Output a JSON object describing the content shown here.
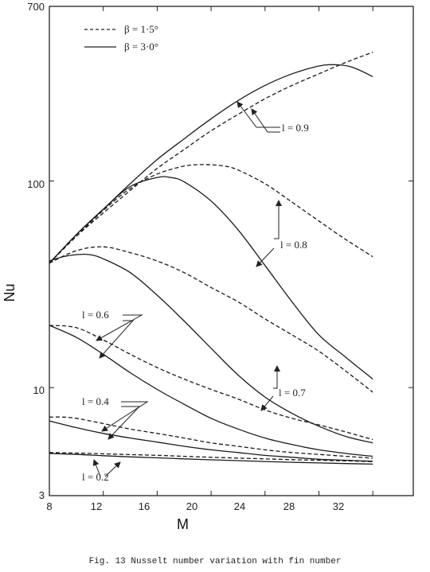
{
  "caption": "Fig. 13   Nusselt number variation with fin number",
  "chart_data": {
    "type": "line",
    "title": "",
    "xlabel": "M",
    "ylabel": "Nu",
    "xlim": [
      8,
      35
    ],
    "ylim": [
      3,
      700
    ],
    "yscale": "log",
    "xticks": [
      8,
      12,
      16,
      20,
      24,
      28,
      32
    ],
    "ytick_labels": [
      "3",
      "10",
      "100",
      "700"
    ],
    "grid": false,
    "legend": {
      "position": "top-left",
      "entries": [
        {
          "label": "β = 1·5°",
          "style": "dashed"
        },
        {
          "label": "β = 3·0°",
          "style": "solid"
        }
      ]
    },
    "series": [
      {
        "group": "l = 0.9",
        "style": "dashed",
        "x": [
          8,
          10,
          12,
          14,
          16,
          18,
          20,
          22,
          24,
          26,
          28,
          30,
          32
        ],
        "y": [
          40,
          54,
          70,
          90,
          115,
          142,
          175,
          210,
          250,
          290,
          330,
          375,
          420
        ]
      },
      {
        "group": "l = 0.9",
        "style": "solid",
        "x": [
          8,
          10,
          12,
          14,
          16,
          18,
          20,
          22,
          24,
          26,
          28,
          29.3,
          30.5,
          32
        ],
        "y": [
          40,
          55,
          73,
          97,
          127,
          160,
          200,
          245,
          290,
          330,
          360,
          365,
          355,
          320
        ]
      },
      {
        "group": "l = 0.8",
        "style": "dashed",
        "x": [
          8,
          10,
          12,
          14,
          16,
          18,
          19.5,
          21,
          22,
          24,
          26,
          28,
          30,
          32
        ],
        "y": [
          40,
          54,
          72,
          92,
          108,
          118,
          120,
          118,
          113,
          97,
          79,
          64,
          52,
          43
        ]
      },
      {
        "group": "l = 0.8",
        "style": "solid",
        "x": [
          8,
          10,
          12,
          14,
          16,
          17,
          18,
          20,
          22,
          24,
          26,
          28,
          30,
          32
        ],
        "y": [
          40,
          55,
          73,
          94,
          104,
          104,
          99,
          80,
          58,
          39,
          26,
          18,
          14,
          11
        ]
      },
      {
        "group": "l = 0.7",
        "style": "dashed",
        "x": [
          8,
          10,
          12,
          14,
          16,
          18,
          20,
          22,
          24,
          26,
          28,
          30,
          32
        ],
        "y": [
          40,
          46,
          48,
          45,
          41,
          36,
          30.5,
          26,
          21.5,
          18,
          15,
          12,
          9.5
        ]
      },
      {
        "group": "l = 0.7",
        "style": "solid",
        "x": [
          8,
          9,
          10,
          11,
          12,
          14,
          16,
          18,
          20,
          22,
          24,
          26,
          28,
          30,
          32
        ],
        "y": [
          41,
          43,
          44,
          44,
          42,
          36,
          28,
          21,
          15.5,
          11.5,
          9,
          7.5,
          6.5,
          5.8,
          5.4
        ]
      },
      {
        "group": "l = 0.6",
        "style": "dashed",
        "x": [
          8,
          10,
          12,
          14,
          16,
          18,
          20,
          22,
          24,
          26,
          28,
          30,
          32
        ],
        "y": [
          20,
          19.5,
          17,
          14.5,
          12.5,
          11,
          9.8,
          8.8,
          7.8,
          7.1,
          6.6,
          6.1,
          5.6
        ]
      },
      {
        "group": "l = 0.6",
        "style": "solid",
        "x": [
          8,
          10,
          12,
          14,
          16,
          18,
          20,
          22,
          24,
          26,
          28,
          30,
          32
        ],
        "y": [
          20,
          17.5,
          14.5,
          11.8,
          9.8,
          8.3,
          7.1,
          6.3,
          5.7,
          5.3,
          5.0,
          4.8,
          4.65
        ]
      },
      {
        "group": "l = 0.4",
        "style": "dashed",
        "x": [
          8,
          9,
          10,
          12,
          14,
          16,
          18,
          20,
          22,
          24,
          26,
          28,
          30,
          32
        ],
        "y": [
          7.2,
          7.2,
          7.1,
          6.7,
          6.3,
          6.0,
          5.7,
          5.4,
          5.2,
          5.0,
          4.85,
          4.75,
          4.65,
          4.55
        ]
      },
      {
        "group": "l = 0.4",
        "style": "solid",
        "x": [
          8,
          10,
          12,
          14,
          16,
          18,
          20,
          22,
          24,
          26,
          28,
          30,
          32
        ],
        "y": [
          6.9,
          6.4,
          6.0,
          5.7,
          5.45,
          5.2,
          5.0,
          4.85,
          4.7,
          4.6,
          4.5,
          4.45,
          4.4
        ]
      },
      {
        "group": "l = 0.2",
        "style": "dashed",
        "x": [
          8,
          10,
          12,
          14,
          16,
          18,
          20,
          22,
          24,
          26,
          28,
          30,
          32
        ],
        "y": [
          4.85,
          4.82,
          4.78,
          4.74,
          4.7,
          4.65,
          4.6,
          4.56,
          4.52,
          4.48,
          4.45,
          4.42,
          4.38
        ]
      },
      {
        "group": "l = 0.2",
        "style": "solid",
        "x": [
          8,
          10,
          12,
          14,
          16,
          18,
          20,
          22,
          24,
          26,
          28,
          30,
          32
        ],
        "y": [
          4.8,
          4.75,
          4.68,
          4.62,
          4.57,
          4.52,
          4.47,
          4.43,
          4.39,
          4.35,
          4.32,
          4.29,
          4.26
        ]
      }
    ],
    "annotations": [
      {
        "text": "l = 0.9"
      },
      {
        "text": "l = 0.8"
      },
      {
        "text": "l = 0.7"
      },
      {
        "text": "l = 0.6"
      },
      {
        "text": "l = 0.4"
      },
      {
        "text": "l = 0.2"
      }
    ]
  }
}
